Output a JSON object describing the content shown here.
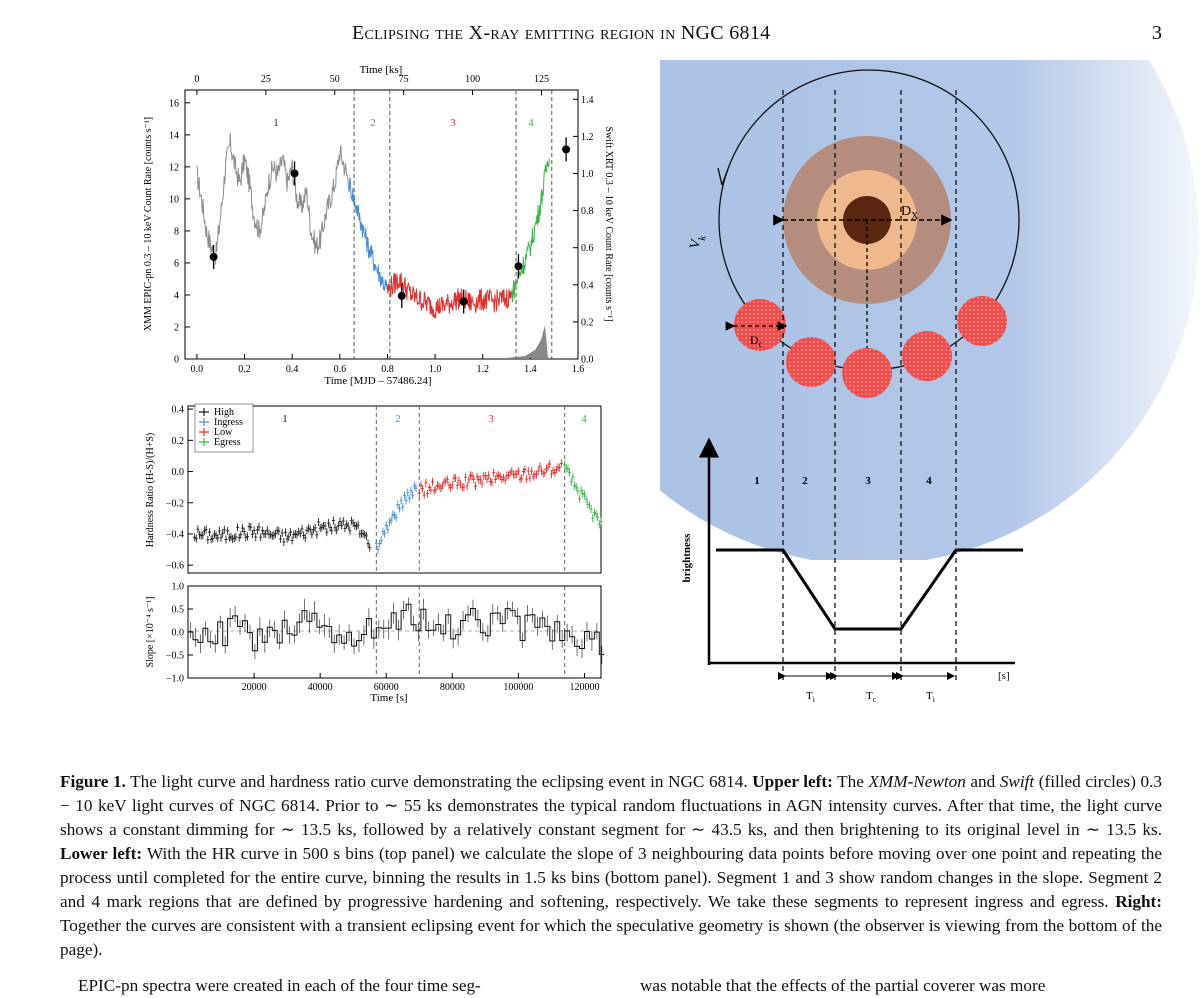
{
  "header": {
    "title": "Eclipsing the X-ray emitting region in NGC 6814",
    "page_number": "3"
  },
  "figure": {
    "light_curve": {
      "top_axis_label": "Time [ks]",
      "top_ticks": [
        "0",
        "25",
        "50",
        "75",
        "100",
        "125"
      ],
      "bottom_axis_label": "Time [MJD – 57486.24]",
      "bottom_ticks": [
        "0.0",
        "0.2",
        "0.4",
        "0.6",
        "0.8",
        "1.0",
        "1.2",
        "1.4",
        "1.6"
      ],
      "left_axis_label": "XMM EPIC-pn 0.3 – 10 keV Count Rate [counts s⁻¹]",
      "left_ticks": [
        "0",
        "2",
        "4",
        "6",
        "8",
        "10",
        "12",
        "14",
        "16"
      ],
      "right_axis_label": "Swift XRT 0.3 – 10 keV Count Rate [counts s⁻¹]",
      "right_ticks": [
        "0.0",
        "0.2",
        "0.4",
        "0.6",
        "0.8",
        "1.0",
        "1.2",
        "1.4"
      ],
      "segment_labels": [
        "1",
        "2",
        "3",
        "4"
      ]
    },
    "hardness": {
      "left_axis_label": "Hardness Ratio (H-S)/(H+S)",
      "left_ticks": [
        "−0.6",
        "−0.4",
        "−0.2",
        "0.0",
        "0.2",
        "0.4"
      ],
      "legend": [
        "High",
        "Ingress",
        "Low",
        "Egress"
      ],
      "segment_labels": [
        "1",
        "2",
        "3",
        "4"
      ]
    },
    "slope": {
      "left_axis_label": "Slope [×10⁻⁴ s⁻¹]",
      "left_ticks": [
        "−1.0",
        "−0.5",
        "0.0",
        "0.5",
        "1.0"
      ],
      "bottom_ticks": [
        "20000",
        "40000",
        "60000",
        "80000",
        "100000",
        "120000"
      ],
      "bottom_axis_label": "Time [s]"
    },
    "geometry": {
      "vk_label": "V",
      "vk_sub": "k",
      "dx_label": "D",
      "dx_sub": "X",
      "dc_label": "D",
      "dc_sub": "c",
      "segment_labels": [
        "1",
        "2",
        "3",
        "4"
      ],
      "brightness_label": "brightness",
      "time_unit": "[s]",
      "ti_label": "T",
      "ti_sub": "i",
      "tc_label": "T",
      "tc_sub": "c"
    }
  },
  "chart_data": [
    {
      "type": "line",
      "title": "",
      "xlabel": "Time [MJD – 57486.24]",
      "ylabel": "XMM EPIC-pn 0.3 – 10 keV Count Rate [counts s⁻¹]",
      "y2label": "Swift XRT 0.3 – 10 keV Count Rate [counts s⁻¹]",
      "xlim": [
        -0.05,
        1.6
      ],
      "ylim": [
        0,
        16.8
      ],
      "y2lim": [
        0,
        1.45
      ],
      "series": [
        {
          "name": "High",
          "color": "#8c8c8c",
          "x": [
            0.0,
            0.02,
            0.04,
            0.06,
            0.08,
            0.1,
            0.12,
            0.14,
            0.16,
            0.18,
            0.2,
            0.22,
            0.24,
            0.26,
            0.28,
            0.3,
            0.32,
            0.34,
            0.36,
            0.38,
            0.4,
            0.42,
            0.44,
            0.46,
            0.48,
            0.5,
            0.52,
            0.54,
            0.56,
            0.58,
            0.6,
            0.62,
            0.64
          ],
          "y": [
            11.5,
            10.0,
            8.0,
            7.0,
            6.5,
            9.0,
            12.0,
            13.5,
            12.0,
            11.0,
            12.5,
            11.0,
            9.0,
            8.0,
            9.0,
            11.0,
            12.0,
            11.5,
            12.5,
            11.0,
            12.0,
            10.0,
            9.5,
            10.5,
            8.0,
            7.0,
            7.5,
            9.0,
            10.0,
            11.0,
            13.0,
            12.0,
            11.0
          ]
        },
        {
          "name": "Ingress",
          "color": "#4a8bc9",
          "x": [
            0.64,
            0.68,
            0.72,
            0.76,
            0.8
          ],
          "y": [
            11.0,
            9.0,
            7.0,
            5.5,
            4.3
          ]
        },
        {
          "name": "Low",
          "color": "#e03030",
          "x": [
            0.8,
            0.85,
            0.9,
            0.95,
            1.0,
            1.05,
            1.1,
            1.15,
            1.2,
            1.25,
            1.3,
            1.32
          ],
          "y": [
            4.3,
            5.0,
            4.0,
            3.6,
            3.2,
            3.4,
            3.8,
            3.5,
            3.7,
            3.6,
            3.8,
            4.0
          ]
        },
        {
          "name": "Egress",
          "color": "#3db34a",
          "x": [
            1.32,
            1.36,
            1.4,
            1.44,
            1.48
          ],
          "y": [
            4.0,
            5.5,
            7.0,
            9.5,
            13.0
          ]
        },
        {
          "name": "Swift",
          "color": "#000000",
          "x": [
            0.07,
            0.41,
            0.86,
            1.12,
            1.35,
            1.55
          ],
          "y2": [
            0.55,
            1.0,
            0.34,
            0.31,
            0.5,
            1.13
          ]
        }
      ],
      "vlines_x": [
        0.66,
        0.81,
        1.34,
        1.49
      ]
    },
    {
      "type": "scatter",
      "title": "",
      "ylabel": "Hardness Ratio (H-S)/(H+S)",
      "xlim": [
        0,
        125000
      ],
      "ylim": [
        -0.65,
        0.42
      ],
      "series": [
        {
          "name": "High",
          "color": "#222222",
          "x": [
            2000,
            10000,
            20000,
            30000,
            40000,
            50000,
            55000
          ],
          "y": [
            -0.4,
            -0.41,
            -0.38,
            -0.42,
            -0.36,
            -0.34,
            -0.45
          ]
        },
        {
          "name": "Ingress",
          "color": "#4a8bc9",
          "x": [
            57000,
            60000,
            63000,
            66000,
            69000
          ],
          "y": [
            -0.48,
            -0.36,
            -0.26,
            -0.16,
            -0.1
          ]
        },
        {
          "name": "Low",
          "color": "#e03030",
          "x": [
            70000,
            80000,
            90000,
            100000,
            110000,
            113000
          ],
          "y": [
            -0.12,
            -0.08,
            -0.05,
            -0.02,
            0.02,
            0.03
          ]
        },
        {
          "name": "Egress",
          "color": "#3db34a",
          "x": [
            114000,
            118000,
            122000,
            125000
          ],
          "y": [
            0.02,
            -0.12,
            -0.25,
            -0.34
          ]
        }
      ],
      "vlines_x": [
        57000,
        70000,
        114000
      ]
    },
    {
      "type": "line",
      "title": "",
      "xlabel": "Time [s]",
      "ylabel": "Slope [×10⁻⁴ s⁻¹]",
      "xlim": [
        0,
        125000
      ],
      "ylim": [
        -1.0,
        1.0
      ],
      "series": [
        {
          "name": "",
          "color": "#111111",
          "x": [
            0,
            5000,
            10000,
            15000,
            20000,
            25000,
            30000,
            35000,
            40000,
            45000,
            50000,
            55000,
            60000,
            65000,
            70000,
            75000,
            80000,
            85000,
            90000,
            95000,
            100000,
            105000,
            110000,
            115000,
            120000,
            125000
          ],
          "y": [
            0.1,
            0.05,
            -0.1,
            0.2,
            -0.2,
            0.15,
            -0.1,
            0.3,
            0.2,
            -0.2,
            -0.3,
            0.1,
            0.15,
            0.4,
            0.2,
            0.3,
            0.1,
            0.4,
            0.2,
            0.3,
            0.1,
            0.2,
            0.0,
            -0.1,
            -0.2,
            -0.3
          ]
        }
      ],
      "vlines_x": [
        57000,
        70000,
        114000
      ]
    }
  ],
  "caption": {
    "label": "Figure 1.",
    "p1": " The light curve and hardness ratio curve demonstrating the eclipsing event in NGC 6814. ",
    "h1": "Upper left:",
    "p2a": " The ",
    "xmm": "XMM-Newton",
    "p2b": " and ",
    "swift": "Swift",
    "p2c": " (filled circles) 0.3 − 10 keV light curves of NGC 6814. Prior to ∼ 55 ks demonstrates the typical random fluctuations in AGN intensity curves. After that time, the light curve shows a constant dimming for ∼ 13.5 ks, followed by a relatively constant segment for ∼ 43.5 ks, and then brightening to its original level in ∼ 13.5 ks. ",
    "h2": "Lower left:",
    "p3": " With the HR curve in 500 s bins (top panel) we calculate the slope of 3 neighbouring data points before moving over one point and repeating the process until completed for the entire curve, binning the results in 1.5 ks bins (bottom panel). Segment 1 and 3 show random changes in the slope. Segment 2 and 4 mark regions that are defined by progressive hardening and softening, respectively. We take these segments to represent ingress and egress. ",
    "h3": "Right:",
    "p4": " Together the curves are consistent with a transient eclipsing event for which the speculative geometry is shown (the observer is viewing from the bottom of the page)."
  },
  "body": {
    "left": "EPIC-pn spectra were created in each of the four time seg-",
    "right": "was notable that the effects of the partial coverer was more"
  }
}
